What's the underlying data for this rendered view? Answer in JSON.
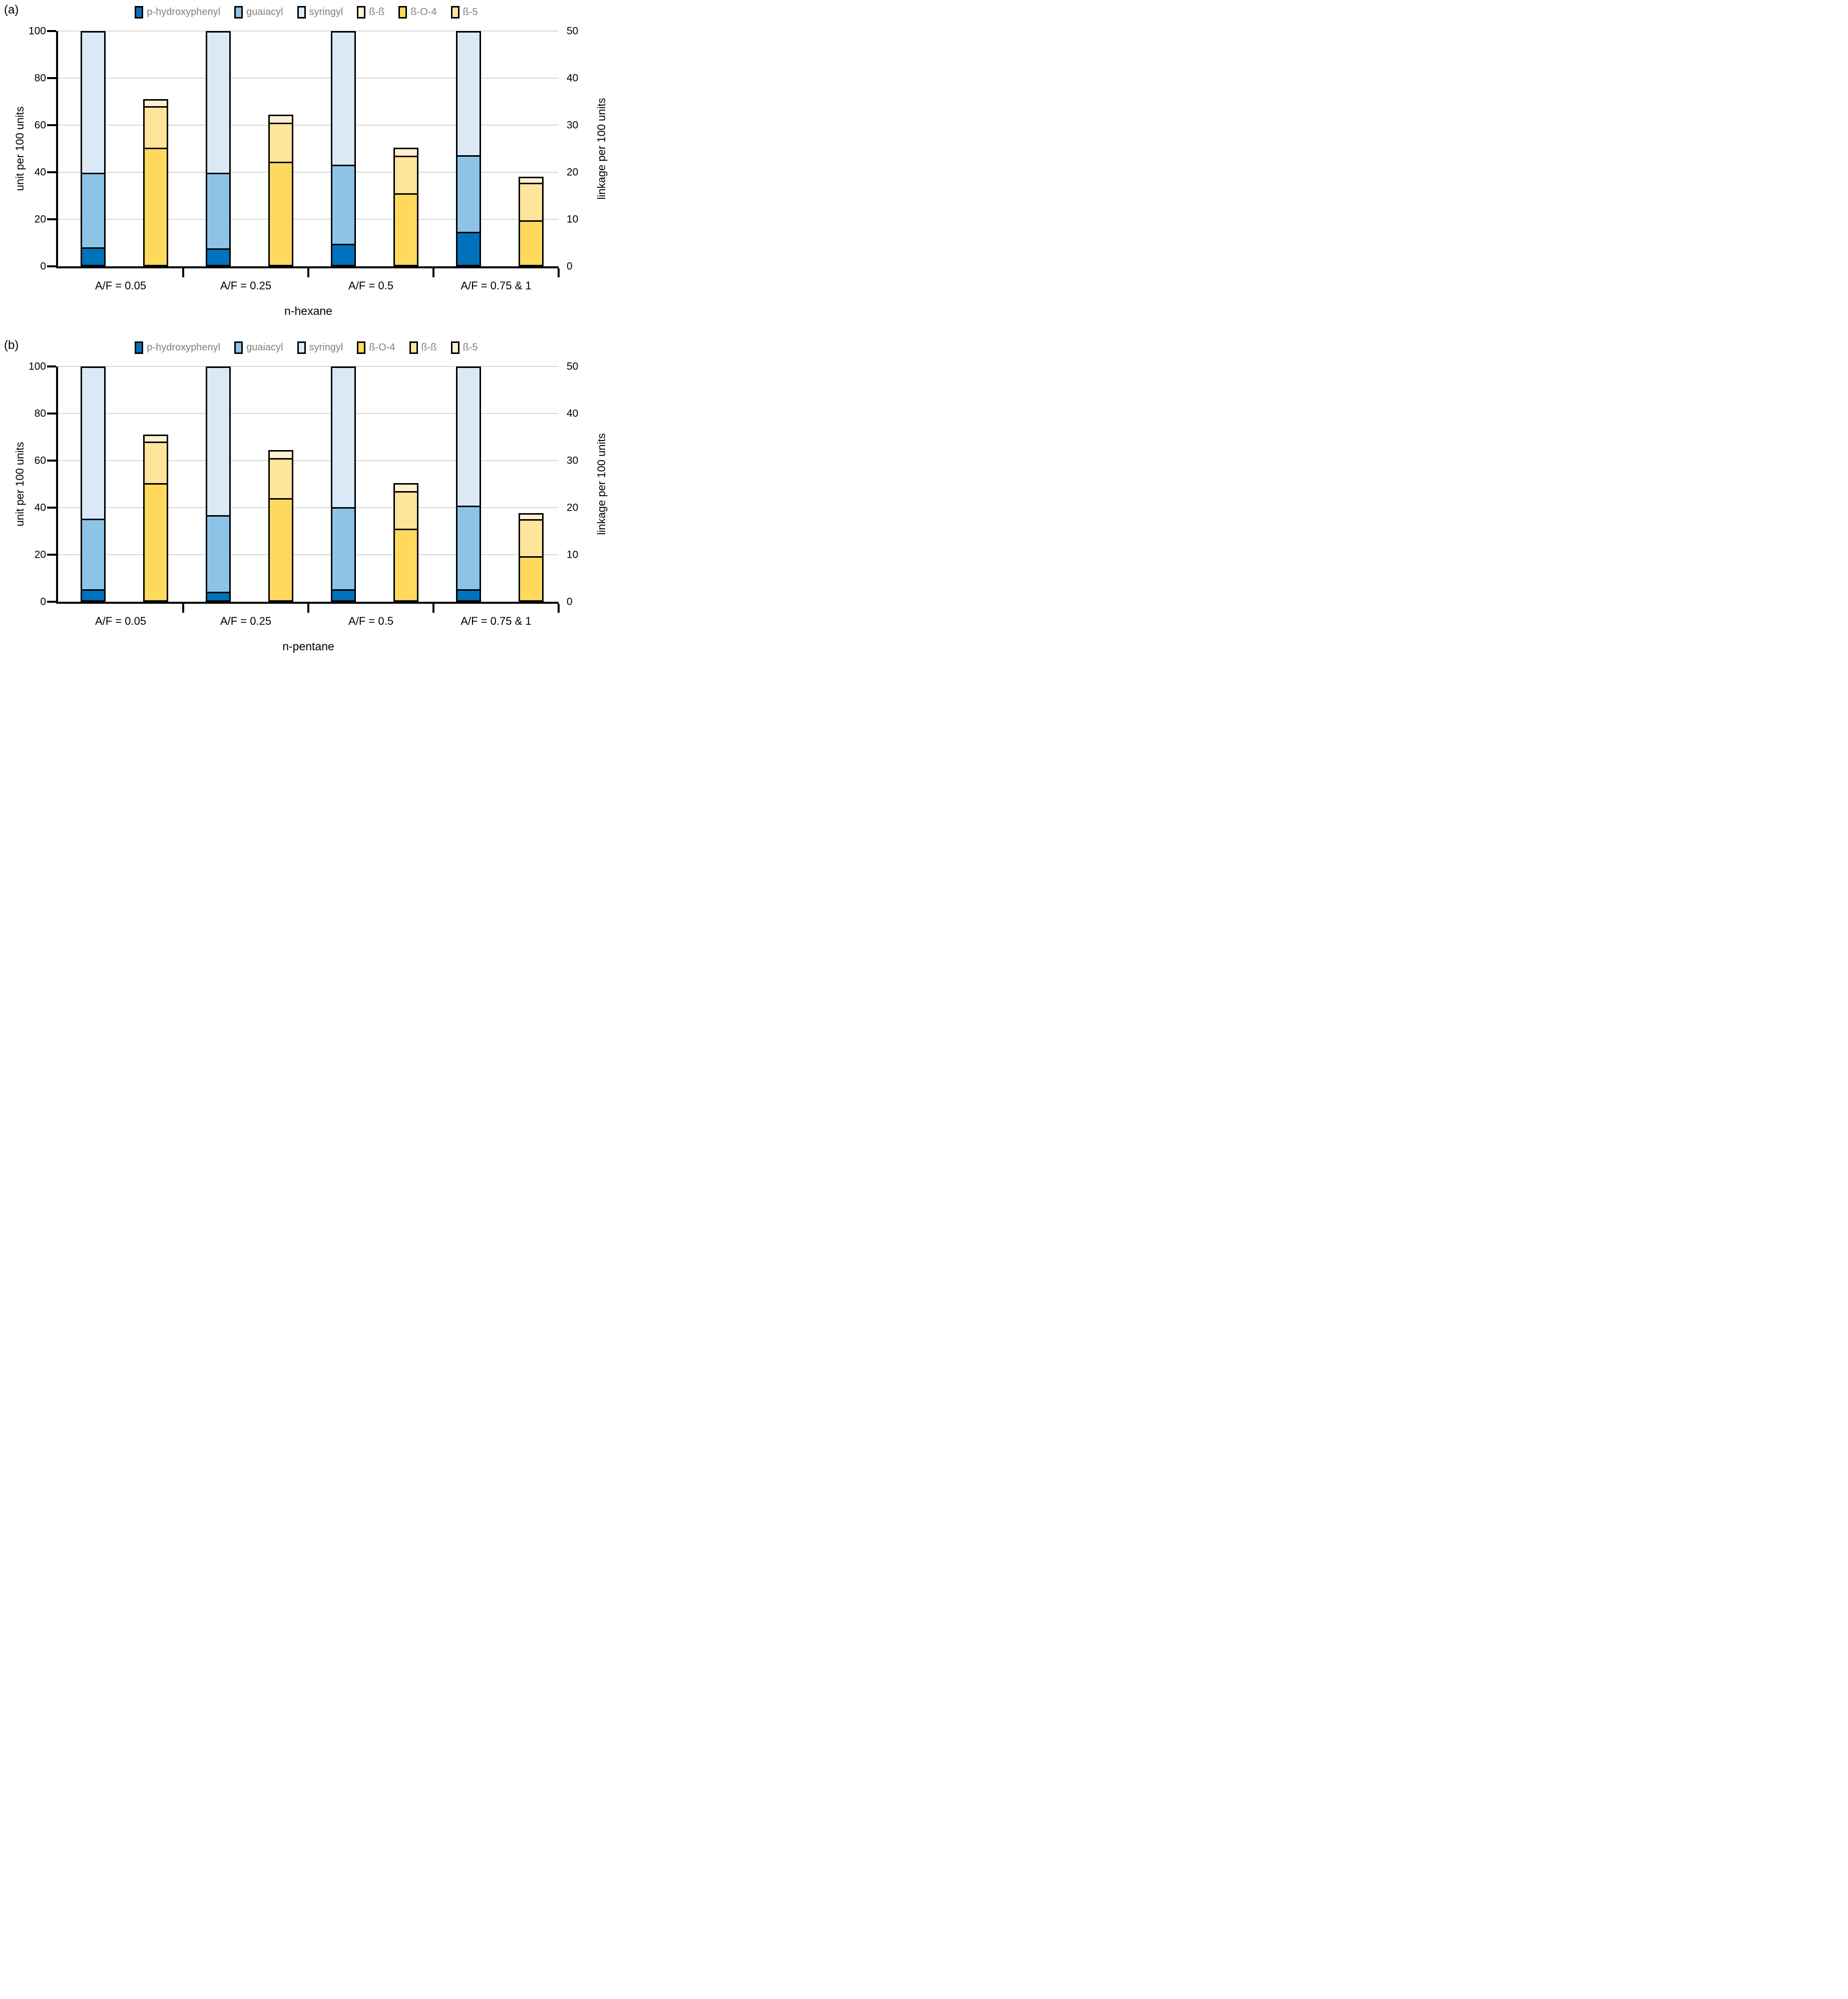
{
  "chart_data": [
    {
      "panel_label": "(a)",
      "type": "bar",
      "stacked": true,
      "grid": true,
      "categories": [
        "A/F = 0.05",
        "A/F = 0.25",
        "A/F = 0.5",
        "A/F = 0.75 & 1"
      ],
      "x_axis_title": "n-hexane",
      "left_axis": {
        "label": "unit per 100 units",
        "min": 0,
        "max": 100,
        "ticks": [
          0,
          20,
          40,
          60,
          80,
          100
        ]
      },
      "right_axis": {
        "label": "linkage per 100 units",
        "min": 0,
        "max": 50,
        "ticks": [
          0,
          10,
          20,
          30,
          40,
          50
        ]
      },
      "unit_bar_series": [
        {
          "name": "p-hydroxyphenyl",
          "color": "#0072BC",
          "values": [
            7,
            6.5,
            8.5,
            13.5
          ]
        },
        {
          "name": "guaiacyl",
          "color": "#8DC3E6",
          "values": [
            32,
            32.5,
            34,
            33
          ]
        },
        {
          "name": "syringyl",
          "color": "#DAE9F5",
          "values": [
            61,
            61,
            57.5,
            53.5
          ]
        }
      ],
      "linkage_bar_series": [
        {
          "name": "ß-O-4",
          "color": "#FFD95E",
          "values": [
            25,
            22,
            15.25,
            9.5
          ]
        },
        {
          "name": "ß-5",
          "color": "#FFE49B",
          "values": [
            9,
            8.5,
            8.25,
            8.25
          ]
        },
        {
          "name": "ß-ß",
          "color": "#FDEFD2",
          "values": [
            1.5,
            1.75,
            1.75,
            1.25
          ]
        }
      ],
      "legend": [
        {
          "label": "p-hydroxyphenyl",
          "color": "#0072BC"
        },
        {
          "label": "guaiacyl",
          "color": "#8DC3E6"
        },
        {
          "label": "syringyl",
          "color": "#DAE9F5"
        },
        {
          "label": "ß-ß",
          "color": "#FDEFD2"
        },
        {
          "label": "ß-O-4",
          "color": "#FFD95E"
        },
        {
          "label": "ß-5",
          "color": "#FFE49B"
        }
      ]
    },
    {
      "panel_label": "(b)",
      "type": "bar",
      "stacked": true,
      "grid": true,
      "categories": [
        "A/F = 0.05",
        "A/F = 0.25",
        "A/F = 0.5",
        "A/F = 0.75 & 1"
      ],
      "x_axis_title": "n-pentane",
      "left_axis": {
        "label": "unit per 100 units",
        "min": 0,
        "max": 100,
        "ticks": [
          0,
          20,
          40,
          60,
          80,
          100
        ]
      },
      "right_axis": {
        "label": "linkage per 100 units",
        "min": 0,
        "max": 50,
        "ticks": [
          0,
          10,
          20,
          30,
          40,
          50
        ]
      },
      "unit_bar_series": [
        {
          "name": "p-hydroxyphenyl",
          "color": "#0072BC",
          "values": [
            4,
            3,
            4,
            4
          ]
        },
        {
          "name": "guaiacyl",
          "color": "#8DC3E6",
          "values": [
            30.5,
            33,
            35.5,
            36
          ]
        },
        {
          "name": "syringyl",
          "color": "#DAE9F5",
          "values": [
            65.5,
            64,
            60.5,
            60
          ]
        }
      ],
      "linkage_bar_series": [
        {
          "name": "ß-O-4",
          "color": "#FFD95E",
          "values": [
            25,
            21.8,
            15.25,
            9.4
          ]
        },
        {
          "name": "ß-ß",
          "color": "#FFE49B",
          "values": [
            9,
            8.7,
            8.25,
            8.1
          ]
        },
        {
          "name": "ß-5",
          "color": "#FDEFD2",
          "values": [
            1.5,
            1.75,
            1.75,
            1.3
          ]
        }
      ],
      "legend": [
        {
          "label": "p-hydroxyphenyl",
          "color": "#0072BC"
        },
        {
          "label": "guaiacyl",
          "color": "#8DC3E6"
        },
        {
          "label": "syringyl",
          "color": "#DAE9F5"
        },
        {
          "label": "ß-O-4",
          "color": "#FFD95E"
        },
        {
          "label": "ß-ß",
          "color": "#FFE49B"
        },
        {
          "label": "ß-5",
          "color": "#FDEFD2"
        }
      ]
    }
  ]
}
